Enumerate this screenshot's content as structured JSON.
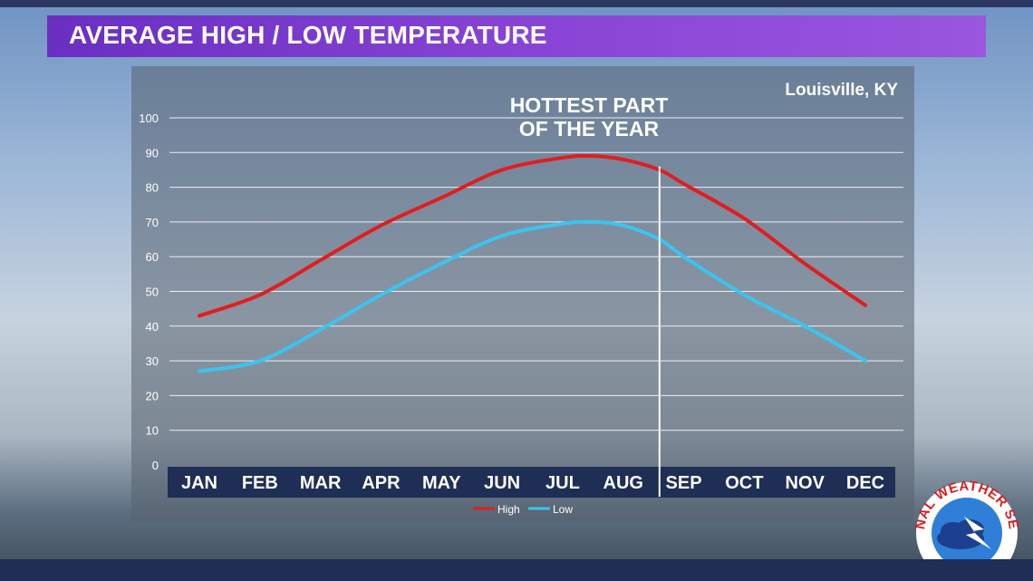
{
  "header": {
    "title": "AVERAGE HIGH / LOW TEMPERATURE"
  },
  "location": "Louisville,  KY",
  "annotation": {
    "line1": "HOTTEST PART",
    "line2": "OF THE YEAR"
  },
  "logo": {
    "text": "NATIONAL WEATHER SERVICE",
    "icon": "nws-logo-icon"
  },
  "colors": {
    "high": "#e01e1e",
    "low": "#3bc4f0",
    "title_bg": "#7a3bcf",
    "axis_band": "#1f2e55"
  },
  "chart_data": {
    "type": "line",
    "categories": [
      "JAN",
      "FEB",
      "MAR",
      "APR",
      "MAY",
      "JUN",
      "JUL",
      "AUG",
      "SEP",
      "OCT",
      "NOV",
      "DEC"
    ],
    "x_numeric": [
      0,
      1,
      2,
      3,
      4,
      5,
      6,
      7,
      8,
      9,
      10,
      11
    ],
    "series": [
      {
        "name": "High",
        "color": "#e01e1e",
        "x": [
          0,
          1,
          2,
          3,
          4,
          5,
          6,
          6.5,
          7,
          7.6,
          8,
          9,
          10,
          11
        ],
        "values": [
          43,
          49,
          59,
          69,
          77,
          85,
          88.5,
          89,
          88,
          85,
          81,
          71,
          58,
          46
        ]
      },
      {
        "name": "Low",
        "color": "#3bc4f0",
        "x": [
          0,
          1,
          2,
          3,
          4,
          5,
          6,
          6.5,
          7,
          7.6,
          8,
          9,
          10,
          11
        ],
        "values": [
          27,
          30,
          39,
          49,
          58,
          66,
          69.5,
          70,
          69,
          65,
          60,
          49,
          40,
          30
        ]
      }
    ],
    "marker_x": 7.6,
    "ylim": [
      0,
      100
    ],
    "yticks": [
      0,
      10,
      20,
      30,
      40,
      50,
      60,
      70,
      80,
      90,
      100
    ],
    "grid": true,
    "legend": "bottom-center"
  }
}
